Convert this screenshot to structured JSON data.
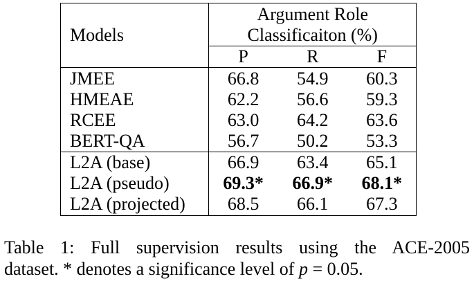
{
  "table": {
    "models_header": "Models",
    "group_header_line1": "Argument Role",
    "group_header_line2": "Classificaiton (%)",
    "metric_headers": [
      "P",
      "R",
      "F"
    ],
    "rows": [
      {
        "model": "JMEE",
        "P": "66.8",
        "R": "54.9",
        "F": "60.3"
      },
      {
        "model": "HMEAE",
        "P": "62.2",
        "R": "56.6",
        "F": "59.3"
      },
      {
        "model": "RCEE",
        "P": "63.0",
        "R": "64.2",
        "F": "63.6"
      },
      {
        "model": "BERT-QA",
        "P": "56.7",
        "R": "50.2",
        "F": "53.3"
      },
      {
        "model": "L2A (base)",
        "P": "66.9",
        "R": "63.4",
        "F": "65.1"
      },
      {
        "model": "L2A (pseudo)",
        "P": "69.3*",
        "R": "66.9*",
        "F": "68.1*"
      },
      {
        "model": "L2A (projected)",
        "P": "68.5",
        "R": "66.1",
        "F": "67.3"
      }
    ]
  },
  "caption": {
    "line1": "Table 1: Full supervision results using the ACE-2005",
    "line2_before": "dataset. * denotes a significance level of ",
    "line2_var": "p",
    "line2_after": " = 0.05."
  }
}
